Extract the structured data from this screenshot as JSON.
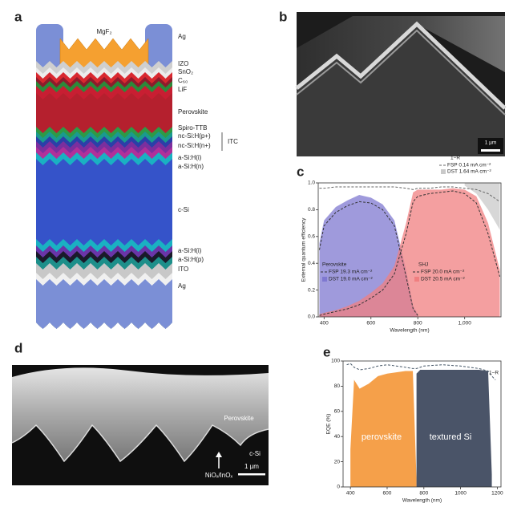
{
  "panel_labels": [
    "a",
    "b",
    "c",
    "d",
    "e"
  ],
  "stack": {
    "top_label": "MgF₂",
    "labels": [
      "Ag",
      "IZO",
      "SnO₂",
      "C₆₀",
      "LiF",
      "Perovskite",
      "Spiro-TTB",
      "nc-Si:H(p+)",
      "nc-Si:H(n+)",
      "a-Si:H(i)",
      "a-Si:H(n)",
      "c-Si",
      "a-Si:H(i)",
      "a-Si:H(p)",
      "ITO",
      "Ag"
    ],
    "bracket_label": "ITC"
  },
  "image_b": {
    "scale_bar": "1 µm"
  },
  "image_d": {
    "labels": [
      "Perovskite",
      "c-Si",
      "NiOₓ/InOₓ"
    ],
    "scale_bar": "1 µm"
  },
  "chart_data": [
    {
      "type": "area",
      "xlabel": "Wavelength (nm)",
      "ylabel": "External quantum efficiency",
      "x": [
        380,
        400,
        450,
        500,
        550,
        600,
        650,
        700,
        750,
        780,
        800,
        850,
        900,
        950,
        1000,
        1050,
        1100,
        1150
      ],
      "xlim": [
        375,
        1155
      ],
      "xticks": [
        400,
        600,
        800,
        {
          "value": 1000,
          "label": "1,000"
        }
      ],
      "ylim": [
        0,
        1
      ],
      "yticks": [
        {
          "value": 0,
          "label": "0.0"
        },
        {
          "value": 0.2,
          "label": "0.2"
        },
        {
          "value": 0.4,
          "label": "0.4"
        },
        {
          "value": 0.6,
          "label": "0.6"
        },
        {
          "value": 0.8,
          "label": "0.8"
        },
        {
          "value": 1,
          "label": "1.0"
        }
      ],
      "legend_title": "1−R",
      "annotations": [
        "Perovskite",
        "SHJ"
      ],
      "series": [
        {
          "name": "FSP 0.14 mA cm⁻²",
          "color": "#666666",
          "style": "dashed",
          "values": [
            0.96,
            0.96,
            0.97,
            0.97,
            0.97,
            0.97,
            0.97,
            0.97,
            0.96,
            0.95,
            0.96,
            0.96,
            0.97,
            0.97,
            0.96,
            0.95,
            0.92,
            0.86
          ]
        },
        {
          "name": "DST 1.64 mA cm⁻²",
          "color": "#c9c9c9",
          "style": "area-above",
          "values": [
            null,
            null,
            null,
            null,
            null,
            null,
            null,
            null,
            null,
            null,
            null,
            null,
            null,
            null,
            0.98,
            0.92,
            0.8,
            0.65
          ]
        },
        {
          "name": "FSP 19.3 mA cm⁻²",
          "color": "#333333",
          "style": "dashed",
          "values": [
            0.5,
            0.68,
            0.78,
            0.83,
            0.86,
            0.85,
            0.8,
            0.68,
            0.3,
            0.06,
            0.01,
            null,
            null,
            null,
            null,
            null,
            null,
            null
          ]
        },
        {
          "name": "DST 19.0 mA cm⁻²",
          "color": "#7f78d0",
          "style": "area",
          "values": [
            0.55,
            0.72,
            0.82,
            0.87,
            0.91,
            0.89,
            0.84,
            0.72,
            0.35,
            0.08,
            0.02,
            null,
            null,
            null,
            null,
            null,
            null,
            null
          ]
        },
        {
          "name": "FSP 20.0 mA cm⁻²",
          "color": "#333333",
          "style": "dashed",
          "values": [
            0.01,
            0.02,
            0.04,
            0.06,
            0.09,
            0.14,
            0.2,
            0.32,
            0.62,
            0.86,
            0.9,
            0.92,
            0.93,
            0.94,
            0.92,
            0.85,
            0.62,
            0.3
          ]
        },
        {
          "name": "DST 20.5 mA cm⁻²",
          "color": "#f07f80",
          "style": "area",
          "values": [
            0.02,
            0.03,
            0.05,
            0.08,
            0.12,
            0.18,
            0.25,
            0.38,
            0.7,
            0.93,
            0.95,
            0.95,
            0.95,
            0.96,
            0.95,
            0.9,
            0.7,
            0.35
          ]
        }
      ]
    },
    {
      "type": "area",
      "xlabel": "Wavelength (nm)",
      "ylabel": "EQE (%)",
      "x": [
        380,
        400,
        420,
        450,
        500,
        550,
        600,
        650,
        700,
        740,
        760,
        780,
        800,
        900,
        1000,
        1100,
        1150,
        1170,
        1190
      ],
      "xlim": [
        360,
        1220
      ],
      "xticks": [
        400,
        600,
        800,
        1000,
        1200
      ],
      "ylim": [
        0,
        100
      ],
      "yticks": [
        0,
        20,
        40,
        60,
        80,
        100
      ],
      "series": [
        {
          "name": "perovskite",
          "color": "#f5a04a",
          "style": "area",
          "values": [
            null,
            30,
            85,
            78,
            82,
            88,
            90,
            91,
            92,
            92,
            5,
            null,
            null,
            null,
            null,
            null,
            null,
            null,
            null
          ]
        },
        {
          "name": "textured Si",
          "color": "#4a5468",
          "style": "area",
          "values": [
            null,
            null,
            null,
            null,
            null,
            null,
            null,
            null,
            null,
            null,
            90,
            93,
            93,
            93,
            93,
            93,
            92,
            10,
            null
          ]
        },
        {
          "name": "1−R",
          "color": "#445566",
          "style": "dashed",
          "values": [
            97,
            98,
            95,
            93,
            94,
            96,
            97,
            96,
            95,
            94,
            94,
            95,
            96,
            97,
            96,
            94,
            92,
            88,
            85
          ]
        }
      ]
    }
  ]
}
